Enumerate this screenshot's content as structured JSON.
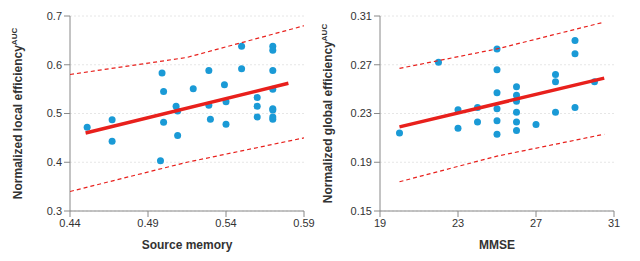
{
  "chart_data": [
    {
      "type": "scatter",
      "x_label": "Source memory",
      "y_label": "Normalized local efficiency",
      "y_label_superscript": "AUC",
      "xlim": [
        0.44,
        0.59
      ],
      "xticks": [
        0.44,
        0.49,
        0.54,
        0.59
      ],
      "ylim": [
        0.3,
        0.7
      ],
      "yticks": [
        0.3,
        0.4,
        0.5,
        0.6,
        0.7
      ],
      "grid": true,
      "series": [
        {
          "type": "scatter",
          "color": "#1a9ad6",
          "marker": "circle",
          "x": [
            0.451,
            0.467,
            0.467,
            0.499,
            0.5,
            0.5,
            0.498,
            0.508,
            0.509,
            0.509,
            0.519,
            0.529,
            0.529,
            0.53,
            0.539,
            0.54,
            0.54,
            0.55,
            0.55,
            0.56,
            0.56,
            0.56,
            0.57,
            0.57,
            0.57,
            0.57,
            0.57,
            0.57,
            0.57,
            0.57
          ],
          "values": [
            0.472,
            0.487,
            0.443,
            0.583,
            0.545,
            0.482,
            0.403,
            0.515,
            0.505,
            0.455,
            0.551,
            0.588,
            0.517,
            0.488,
            0.559,
            0.524,
            0.478,
            0.638,
            0.592,
            0.533,
            0.515,
            0.493,
            0.638,
            0.63,
            0.588,
            0.55,
            0.507,
            0.493,
            0.488,
            0.51
          ]
        },
        {
          "type": "line",
          "color": "#e8201c",
          "line_style": "solid",
          "x": [
            0.45,
            0.58
          ],
          "values": [
            0.46,
            0.562
          ]
        },
        {
          "type": "line",
          "color": "#e8201c",
          "line_style": "dashed",
          "x": [
            0.44,
            0.515,
            0.59
          ],
          "values": [
            0.58,
            0.615,
            0.68
          ]
        },
        {
          "type": "line",
          "color": "#e8201c",
          "line_style": "dashed",
          "x": [
            0.44,
            0.515,
            0.59
          ],
          "values": [
            0.34,
            0.4,
            0.45
          ]
        }
      ]
    },
    {
      "type": "scatter",
      "x_label": "MMSE",
      "y_label": "Normalized global efficiency",
      "y_label_superscript": "AUC",
      "xlim": [
        19,
        31
      ],
      "xticks": [
        19,
        23,
        27,
        31
      ],
      "ylim": [
        0.15,
        0.31
      ],
      "yticks": [
        0.15,
        0.19,
        0.23,
        0.27,
        0.31
      ],
      "grid": true,
      "series": [
        {
          "type": "scatter",
          "color": "#1a9ad6",
          "marker": "circle",
          "x": [
            20,
            22,
            23,
            23,
            24,
            24,
            25,
            25,
            25,
            25,
            25,
            25,
            26,
            26,
            26,
            26,
            26,
            26,
            27,
            28,
            28,
            28,
            29,
            29,
            29,
            30
          ],
          "values": [
            0.214,
            0.272,
            0.233,
            0.218,
            0.235,
            0.223,
            0.283,
            0.266,
            0.247,
            0.234,
            0.224,
            0.213,
            0.252,
            0.245,
            0.24,
            0.231,
            0.223,
            0.216,
            0.221,
            0.262,
            0.256,
            0.231,
            0.29,
            0.279,
            0.235,
            0.256
          ]
        },
        {
          "type": "line",
          "color": "#e8201c",
          "line_style": "solid",
          "x": [
            20,
            30.5
          ],
          "values": [
            0.219,
            0.259
          ]
        },
        {
          "type": "line",
          "color": "#e8201c",
          "line_style": "dashed",
          "x": [
            20,
            25,
            30.5
          ],
          "values": [
            0.267,
            0.283,
            0.305
          ]
        },
        {
          "type": "line",
          "color": "#e8201c",
          "line_style": "dashed",
          "x": [
            20,
            25,
            30.5
          ],
          "values": [
            0.174,
            0.195,
            0.213
          ]
        }
      ]
    }
  ]
}
